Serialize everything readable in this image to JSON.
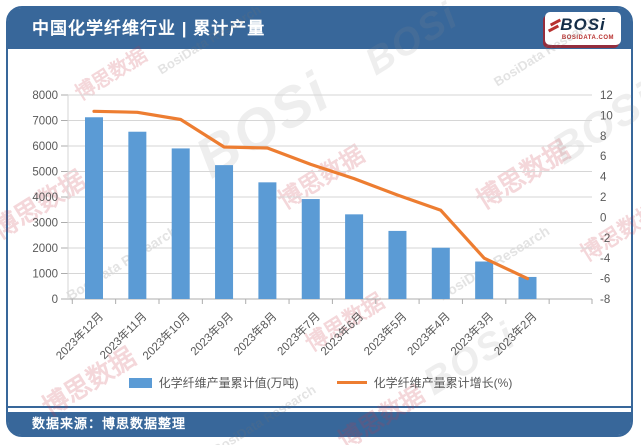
{
  "header": {
    "title": "中国化学纤维行业 | 累计产量",
    "logo": {
      "brand": "BOSi",
      "domain": "BOSIDATA.COM"
    }
  },
  "chart_data": {
    "type": "bar+line combo",
    "title": "中国化学纤维行业累计产量",
    "categories": [
      "2023年12月",
      "2023年11月",
      "2023年10月",
      "2023年9月",
      "2023年8月",
      "2023年7月",
      "2023年6月",
      "2023年5月",
      "2023年4月",
      "2023年3月",
      "2023年2月"
    ],
    "series": [
      {
        "name": "化学纤维产量累计值(万吨)",
        "type": "bar",
        "axis": "left",
        "color": "#5B9BD5",
        "values": [
          7127,
          6560,
          5905,
          5250,
          4575,
          3920,
          3320,
          2670,
          2010,
          1470,
          865
        ]
      },
      {
        "name": "化学纤维产量累计增长(%)",
        "type": "line",
        "axis": "right",
        "color": "#ED7D31",
        "values": [
          10.4,
          10.3,
          9.6,
          6.9,
          6.8,
          5.2,
          3.8,
          2.2,
          0.7,
          -4.0,
          -6.0
        ]
      }
    ],
    "left_axis": {
      "min": 0,
      "max": 8000,
      "step": 1000,
      "ticks": [
        "8000",
        "7000",
        "6000",
        "5000",
        "4000",
        "3000",
        "2000",
        "1000",
        "0"
      ]
    },
    "right_axis": {
      "min": -8,
      "max": 12,
      "step": 2,
      "ticks": [
        "12",
        "10",
        "8",
        "6",
        "4",
        "2",
        "0",
        "-2",
        "-4",
        "-6",
        "-8"
      ]
    },
    "grid": true,
    "legend_position": "bottom"
  },
  "footer": {
    "source": "数据来源：博思数据整理"
  },
  "watermarks": {
    "red_text": "博思数据",
    "gray_text": "BosiData Research",
    "logo_text": "BOSi"
  },
  "colors": {
    "header_bg": "#38679A",
    "bar": "#5B9BD5",
    "line": "#ED7D31",
    "grid": "#D6D6D6",
    "axis_line": "#ADADAD",
    "axis_text": "#595959"
  }
}
